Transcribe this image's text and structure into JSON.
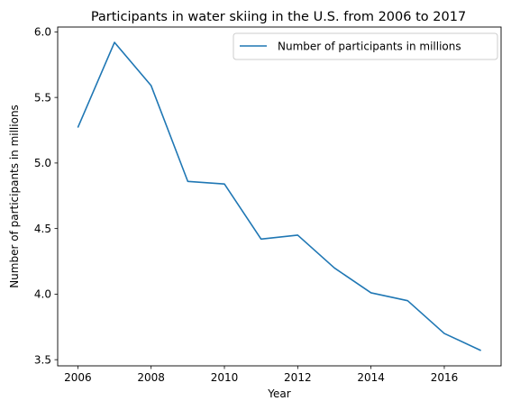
{
  "chart_data": {
    "type": "line",
    "title": "Participants in water skiing in the U.S. from 2006 to 2017",
    "xlabel": "Year",
    "ylabel": "Number of participants in millions",
    "xlim": [
      2005.45,
      2017.55
    ],
    "ylim": [
      3.453,
      6.037
    ],
    "x_ticks": [
      2006,
      2008,
      2010,
      2012,
      2014,
      2016
    ],
    "y_ticks": [
      3.5,
      4.0,
      4.5,
      5.0,
      5.5,
      6.0
    ],
    "x_tick_labels": [
      "2006",
      "2008",
      "2010",
      "2012",
      "2014",
      "2016"
    ],
    "y_tick_labels": [
      "3.5",
      "4.0",
      "4.5",
      "5.0",
      "5.5",
      "6.0"
    ],
    "grid": false,
    "legend_position": "top-right",
    "series": [
      {
        "name": "Number of participants in millions",
        "color": "#1f77b4",
        "x": [
          2006,
          2007,
          2008,
          2009,
          2010,
          2011,
          2012,
          2013,
          2014,
          2015,
          2016,
          2017
        ],
        "values": [
          5.27,
          5.92,
          5.59,
          4.86,
          4.84,
          4.42,
          4.45,
          4.2,
          4.01,
          3.95,
          3.7,
          3.57
        ]
      }
    ]
  }
}
